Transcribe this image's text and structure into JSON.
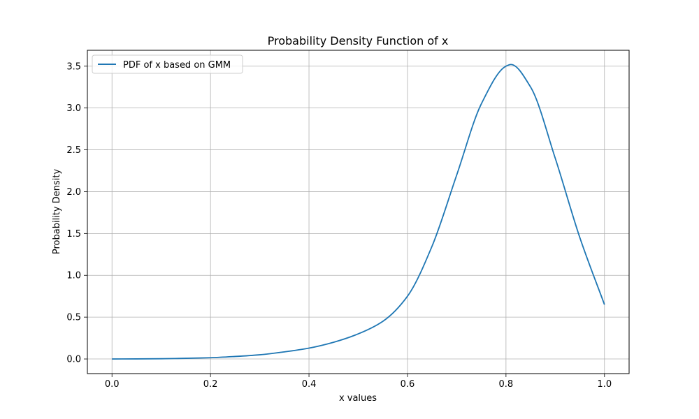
{
  "chart_data": {
    "type": "line",
    "title": "Probability Density Function of x",
    "xlabel": "x values",
    "ylabel": "Probability Density",
    "xlim": [
      -0.05,
      1.05
    ],
    "ylim": [
      -0.175,
      3.69
    ],
    "xticks": [
      0.0,
      0.2,
      0.4,
      0.6,
      0.8,
      1.0
    ],
    "xtick_labels": [
      "0.0",
      "0.2",
      "0.4",
      "0.6",
      "0.8",
      "1.0"
    ],
    "yticks": [
      0.0,
      0.5,
      1.0,
      1.5,
      2.0,
      2.5,
      3.0,
      3.5
    ],
    "ytick_labels": [
      "0.0",
      "0.5",
      "1.0",
      "1.5",
      "2.0",
      "2.5",
      "3.0",
      "3.5"
    ],
    "grid": true,
    "legend_position": "upper-left",
    "series": [
      {
        "name": "PDF of x based on GMM",
        "color": "#1f77b4",
        "x": [
          0.0,
          0.05,
          0.1,
          0.15,
          0.2,
          0.25,
          0.3,
          0.35,
          0.4,
          0.45,
          0.5,
          0.55,
          0.6,
          0.65,
          0.7,
          0.75,
          0.8,
          0.81,
          0.85,
          0.9,
          0.95,
          1.0
        ],
        "y": [
          0.0,
          0.001,
          0.003,
          0.008,
          0.015,
          0.03,
          0.05,
          0.085,
          0.13,
          0.2,
          0.3,
          0.45,
          0.75,
          1.35,
          2.2,
          3.05,
          3.5,
          3.52,
          3.25,
          2.4,
          1.45,
          0.65
        ]
      }
    ]
  }
}
